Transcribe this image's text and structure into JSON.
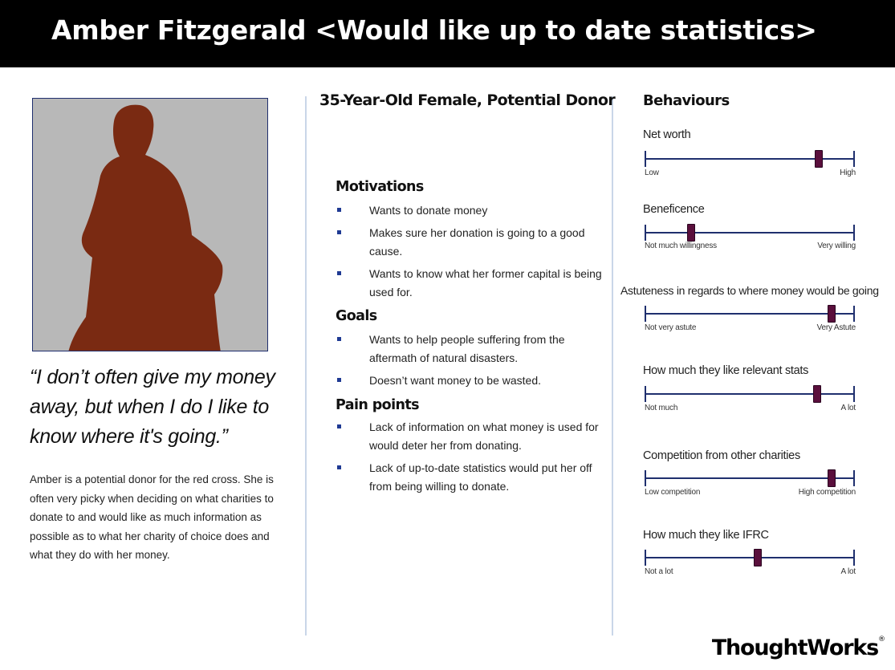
{
  "title": "Amber Fitzgerald <Would like up to date statistics>",
  "quote": "“I don’t often give my money away, but when I do I like to know where it's going.”",
  "bio": "Amber is a potential donor for the red cross. She is often very picky when deciding on what charities to donate to and would like as much information as possible as to what her charity of choice does and what they do with her money.",
  "subtitle": "35-Year-Old Female, Potential Donor",
  "motivations": {
    "heading": "Motivations",
    "items": [
      "Wants to donate money",
      "Makes sure her donation is going to a good cause.",
      "Wants to know what her former capital is being used for."
    ]
  },
  "goals": {
    "heading": "Goals",
    "items": [
      "Wants to help people suffering from the aftermath of natural disasters.",
      "Doesn’t want money to be wasted."
    ]
  },
  "pain_points": {
    "heading": "Pain points",
    "items": [
      "Lack of information on what money is used for would deter her from donating.",
      "Lack of up-to-date statistics would put her off from being willing to donate."
    ]
  },
  "behaviours": {
    "title": "Behaviours",
    "items": [
      {
        "label": "Net worth",
        "low": "Low",
        "high": "High",
        "value": 0.83
      },
      {
        "label": "Beneficence",
        "low": "Not much willingness",
        "high": "Very willing",
        "value": 0.22
      },
      {
        "label": "Astuteness in regards to where money would be going",
        "low": "Not very astute",
        "high": "Very Astute",
        "value": 0.89
      },
      {
        "label": "How much they like relevant stats",
        "low": "Not much",
        "high": "A lot",
        "value": 0.82
      },
      {
        "label": "Competition from other charities",
        "low": "Low competition",
        "high": "High competition",
        "value": 0.89
      },
      {
        "label": "How much they like IFRC",
        "low": "Not a lot",
        "high": "A lot",
        "value": 0.54
      }
    ]
  },
  "brand": {
    "part1": "Thought",
    "part2": "Works",
    "mark": "®"
  },
  "colors": {
    "title_bar": "#000000",
    "silhouette": "#7a2a12",
    "photo_bg": "#b8b8b8",
    "marker": "#5a0f3c",
    "scale_line": "#1f2f6e",
    "bullet": "#1f3a93"
  }
}
